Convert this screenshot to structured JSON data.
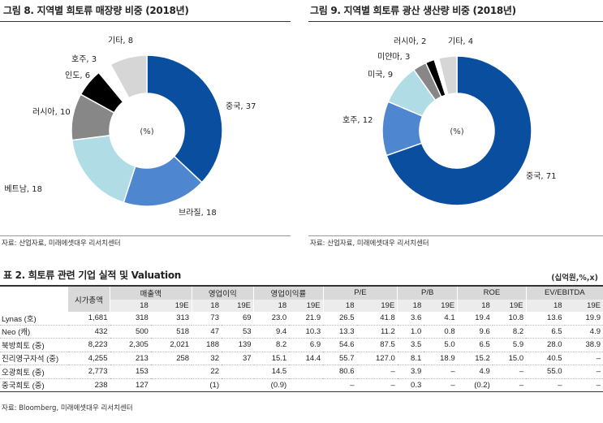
{
  "fig8": {
    "title": "그림 8. 지역별 희토류 매장량 비중 (2018년)",
    "center_label": "(%)",
    "source": "자료: 산업자료, 미래에셋대우 리서치센터"
  },
  "fig9": {
    "title": "그림 9. 지역별 희토류 광산 생산량 비중 (2018년)",
    "center_label": "(%)",
    "source": "자료: 산업자료, 미래에셋대우 리서치센터"
  },
  "chart_data": [
    {
      "type": "pie",
      "title": "그림 8. 지역별 희토류 매장량 비중 (2018년)",
      "unit": "(%)",
      "slices": [
        {
          "label": "중국, 37",
          "name": "중국",
          "value": 37,
          "color": "#0a4ea0"
        },
        {
          "label": "브라질, 18",
          "name": "브라질",
          "value": 18,
          "color": "#4f86d0"
        },
        {
          "label": "베트남, 18",
          "name": "베트남",
          "value": 18,
          "color": "#b0dde5"
        },
        {
          "label": "러시아, 10",
          "name": "러시아",
          "value": 10,
          "color": "#878787"
        },
        {
          "label": "인도, 6",
          "name": "인도",
          "value": 6,
          "color": "#000000"
        },
        {
          "label": "호주, 3",
          "name": "호주",
          "value": 3,
          "color": "#ffffff"
        },
        {
          "label": "기타, 8",
          "name": "기타",
          "value": 8,
          "color": "#d6d6d6"
        }
      ]
    },
    {
      "type": "pie",
      "title": "그림 9. 지역별 희토류 광산 생산량 비중 (2018년)",
      "unit": "(%)",
      "slices": [
        {
          "label": "중국, 71",
          "name": "중국",
          "value": 71,
          "color": "#0a4ea0"
        },
        {
          "label": "호주, 12",
          "name": "호주",
          "value": 12,
          "color": "#4f86d0"
        },
        {
          "label": "미국, 9",
          "name": "미국",
          "value": 9,
          "color": "#b0dde5"
        },
        {
          "label": "미얀마, 3",
          "name": "미얀마",
          "value": 3,
          "color": "#878787"
        },
        {
          "label": "러시아, 2",
          "name": "러시아",
          "value": 2,
          "color": "#000000"
        },
        {
          "label": "",
          "name": "",
          "value": 1,
          "color": "#ffffff"
        },
        {
          "label": "기타, 4",
          "name": "기타",
          "value": 4,
          "color": "#d6d6d6"
        }
      ]
    }
  ],
  "table": {
    "title": "표 2. 희토류 관련 기업 실적 및 Valuation",
    "unit": "(십억원,%,x)",
    "headers": {
      "mktcap": "시가총액",
      "groups": [
        "매출액",
        "영업이익",
        "영업이익률",
        "P/E",
        "P/B",
        "ROE",
        "EV/EBITDA"
      ],
      "years": [
        "18",
        "19E"
      ]
    },
    "rows": [
      {
        "name": "Lynas (호)",
        "cells": [
          "1,681",
          "318",
          "313",
          "73",
          "69",
          "23.0",
          "21.9",
          "26.5",
          "41.8",
          "3.6",
          "4.1",
          "19.4",
          "10.8",
          "13.6",
          "19.9"
        ]
      },
      {
        "name": "Neo (캐)",
        "cells": [
          "432",
          "500",
          "518",
          "47",
          "53",
          "9.4",
          "10.3",
          "13.3",
          "11.2",
          "1.0",
          "0.8",
          "9.6",
          "8.2",
          "6.5",
          "4.9"
        ]
      },
      {
        "name": "북방희토 (중)",
        "cells": [
          "8,223",
          "2,305",
          "2,021",
          "188",
          "139",
          "8.2",
          "6.9",
          "54.6",
          "87.5",
          "3.5",
          "5.0",
          "6.5",
          "5.9",
          "28.0",
          "38.9"
        ]
      },
      {
        "name": "진리영구자석 (중)",
        "cells": [
          "4,255",
          "213",
          "258",
          "32",
          "37",
          "15.1",
          "14.4",
          "55.7",
          "127.0",
          "8.1",
          "18.9",
          "15.2",
          "15.0",
          "40.5",
          "–"
        ]
      },
      {
        "name": "오광희토 (중)",
        "cells": [
          "2,773",
          "153",
          "",
          "22",
          "",
          "14.5",
          "",
          "80.6",
          "–",
          "3.9",
          "–",
          "4.9",
          "–",
          "55.0",
          "–"
        ]
      },
      {
        "name": "중국희토 (중)",
        "cells": [
          "238",
          "127",
          "",
          "(1)",
          "",
          "(0.9)",
          "",
          "–",
          "–",
          "0.3",
          "–",
          "(0.2)",
          "–",
          "–",
          "–"
        ]
      }
    ],
    "source": "자료: Bloomberg, 미래에셋대우 리서치센터"
  }
}
